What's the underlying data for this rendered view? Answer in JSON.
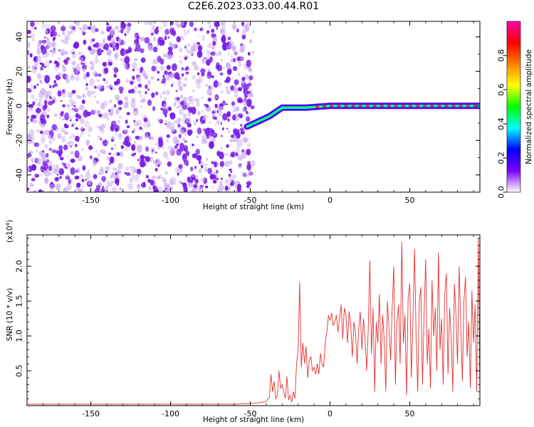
{
  "title": "C2E6.2023.033.00.44.R01",
  "colors": {
    "snr_line": "#e53030",
    "scatter_dense": "#7a1fe6",
    "scatter_light": "#c8a6f2",
    "ridge_core": "#e8203a"
  },
  "chart_data": [
    {
      "type": "heatmap",
      "title": "",
      "xlabel": "Height of straight line (km)",
      "ylabel": "Frequency (Hz)",
      "xlim": [
        -190,
        94
      ],
      "ylim": [
        -50,
        49
      ],
      "xticks": [
        -150,
        -100,
        -50,
        0,
        50
      ],
      "yticks": [
        -40,
        -20,
        0,
        20,
        40
      ],
      "noise_region_x": [
        -190,
        -48
      ],
      "ridge": {
        "x": [
          -52,
          -45,
          -38,
          -30,
          -25,
          -15,
          0,
          30,
          60,
          94
        ],
        "y": [
          -12,
          -9,
          -6,
          -1,
          -1,
          -1,
          0,
          0,
          0,
          0
        ]
      },
      "colorbar": {
        "label": "Normalized spectral amplitude",
        "range": [
          0.0,
          1.0
        ],
        "ticks": [
          "0.0",
          "0.2",
          "0.4",
          "0.6",
          "0.8"
        ],
        "ticks_values": [
          0.0,
          0.2,
          0.4,
          0.6,
          0.8
        ],
        "colormap": [
          "#ffffff",
          "#7b00ff",
          "#0000ff",
          "#00ffff",
          "#00ff00",
          "#ffff00",
          "#ff8000",
          "#ff0000",
          "#ff00aa"
        ]
      }
    },
    {
      "type": "line",
      "title": "",
      "xlabel": "Height of straight line (km)",
      "ylabel": "SNR (10 * v/v)",
      "exponent_label": "(x10",
      "exponent_value": "4",
      "xlim": [
        -190,
        94
      ],
      "ylim": [
        0,
        2.45
      ],
      "xticks": [
        -150,
        -100,
        -50,
        0,
        50
      ],
      "yticks": [
        0.5,
        1.0,
        1.5,
        2.0
      ],
      "yticklabels": [
        "0.5",
        "1.0",
        "1.5",
        "2.0"
      ],
      "series": [
        {
          "x": [
            -190,
            -60,
            -50,
            -45,
            -40,
            -38,
            -37,
            -36,
            -35,
            -34,
            -33,
            -32,
            -31,
            -30,
            -29,
            -28,
            -27,
            -26,
            -25,
            -24,
            -23,
            -22,
            -21,
            -20,
            -19,
            -18,
            -17,
            -16,
            -15,
            -14,
            -13,
            -12,
            -11,
            -10,
            -9,
            -8,
            -7,
            -6,
            -5,
            -4,
            -3,
            -2,
            -1,
            0,
            1,
            2,
            3,
            4,
            5,
            6,
            7,
            8,
            9,
            10,
            11,
            12,
            13,
            14,
            15,
            16,
            17,
            18,
            19,
            20,
            21,
            22,
            23,
            24,
            25,
            26,
            27,
            28,
            29,
            30,
            31,
            32,
            33,
            34,
            35,
            36,
            37,
            38,
            39,
            40,
            41,
            42,
            43,
            44,
            45,
            46,
            47,
            48,
            49,
            50,
            51,
            52,
            53,
            54,
            55,
            56,
            57,
            58,
            59,
            60,
            61,
            62,
            63,
            64,
            65,
            66,
            67,
            68,
            69,
            70,
            71,
            72,
            73,
            74,
            75,
            76,
            77,
            78,
            79,
            80,
            81,
            82,
            83,
            84,
            85,
            86,
            87,
            88,
            89,
            90,
            91,
            92,
            93,
            94
          ],
          "y": [
            0.02,
            0.02,
            0.03,
            0.04,
            0.06,
            0.12,
            0.45,
            0.2,
            0.35,
            0.1,
            0.15,
            0.5,
            0.25,
            0.3,
            0.2,
            0.1,
            0.42,
            0.08,
            0.15,
            0.05,
            0.2,
            0.1,
            0.6,
            0.8,
            1.77,
            0.55,
            0.9,
            0.6,
            0.85,
            0.4,
            0.65,
            0.7,
            0.5,
            0.55,
            0.45,
            0.6,
            0.45,
            0.75,
            0.6,
            0.55,
            0.9,
            1.05,
            1.3,
            1.22,
            1.33,
            1.15,
            1.2,
            1.3,
            1.05,
            1.25,
            1.45,
            0.95,
            1.4,
            1.3,
            0.9,
            1.35,
            1.15,
            0.7,
            1.2,
            1.05,
            0.6,
            1.1,
            1.35,
            0.8,
            1.25,
            0.95,
            0.5,
            1.1,
            2.08,
            0.75,
            1.4,
            0.2,
            1.2,
            0.9,
            1.6,
            0.6,
            1.3,
            0.95,
            0.2,
            1.5,
            1.1,
            0.65,
            1.4,
            2.0,
            0.3,
            1.2,
            1.45,
            0.6,
            2.35,
            0.9,
            1.3,
            0.15,
            1.55,
            1.75,
            0.4,
            1.2,
            2.25,
            1.0,
            0.2,
            1.5,
            1.7,
            0.3,
            1.3,
            2.1,
            0.6,
            1.1,
            0.25,
            1.8,
            1.0,
            1.4,
            0.5,
            2.2,
            0.8,
            1.25,
            0.3,
            1.6,
            1.9,
            0.45,
            1.4,
            1.0,
            0.2,
            1.75,
            1.3,
            0.6,
            2.0,
            1.15,
            0.35,
            1.5,
            1.85,
            0.7,
            1.2,
            0.25,
            1.65,
            0.9,
            1.45,
            0.2,
            2.4,
            0.15
          ]
        }
      ]
    }
  ]
}
